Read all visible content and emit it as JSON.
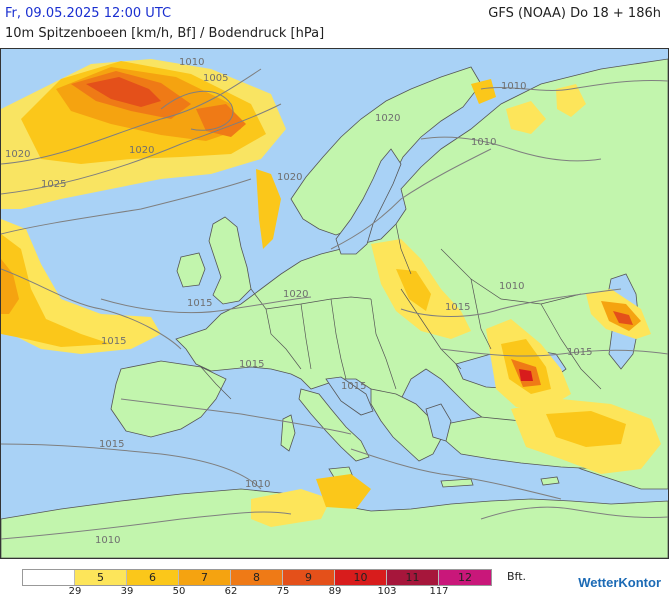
{
  "header": {
    "datetime": "Fr, 09.05.2025 12:00 UTC",
    "model": "GFS (NOAA) Do 18 + 186h",
    "subtitle": "10m Spitzenboeen [km/h, Bf] / Bodendruck [hPa]"
  },
  "isobar_labels": [
    "1010",
    "1005",
    "1020",
    "1025",
    "1010",
    "1010",
    "1020",
    "1020",
    "1020",
    "1020",
    "1015",
    "1015",
    "1010",
    "1015",
    "1015",
    "1015",
    "1015",
    "1010",
    "1010",
    "1015"
  ],
  "legend": {
    "unit": "Bft.",
    "boxes": [
      {
        "label": "",
        "color": "#ffffff"
      },
      {
        "label": "5",
        "color": "#fde55a"
      },
      {
        "label": "6",
        "color": "#fbc71a"
      },
      {
        "label": "7",
        "color": "#f5a310"
      },
      {
        "label": "8",
        "color": "#ef7a16"
      },
      {
        "label": "9",
        "color": "#e4501a"
      },
      {
        "label": "10",
        "color": "#d81c1c"
      },
      {
        "label": "11",
        "color": "#a6163b"
      },
      {
        "label": "12",
        "color": "#c9177a"
      }
    ],
    "ticks": [
      "29",
      "39",
      "50",
      "62",
      "75",
      "89",
      "103",
      "117"
    ]
  },
  "colors": {
    "land": "#c2f5ad",
    "sea": "#a9d2f6",
    "border": "#555555",
    "isobar": "#7f7f7f"
  },
  "brand": "WetterKontor"
}
